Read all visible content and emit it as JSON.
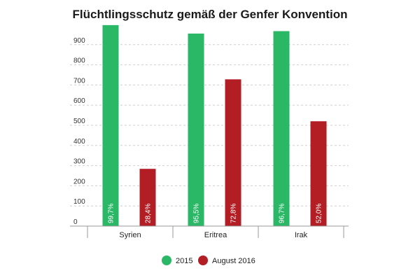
{
  "chart_data": {
    "type": "bar",
    "title": "Flüchtlingsschutz gemäß der Genfer Konvention",
    "xlabel": "",
    "ylabel": "",
    "ylim": [
      0,
      1000
    ],
    "yticks": [
      0,
      100,
      200,
      300,
      400,
      500,
      600,
      700,
      800,
      900
    ],
    "grid": true,
    "legend_position": "bottom",
    "categories": [
      "Syrien",
      "Eritrea",
      "Irak"
    ],
    "series": [
      {
        "name": "2015",
        "color": "#2ab766",
        "values": [
          997,
          955,
          967
        ],
        "labels": [
          "99,7%",
          "95,5%",
          "96,7%"
        ]
      },
      {
        "name": "August 2016",
        "color": "#b21e24",
        "values": [
          284,
          728,
          520
        ],
        "labels": [
          "28,4%",
          "72,8%",
          "52,0%"
        ]
      }
    ]
  }
}
